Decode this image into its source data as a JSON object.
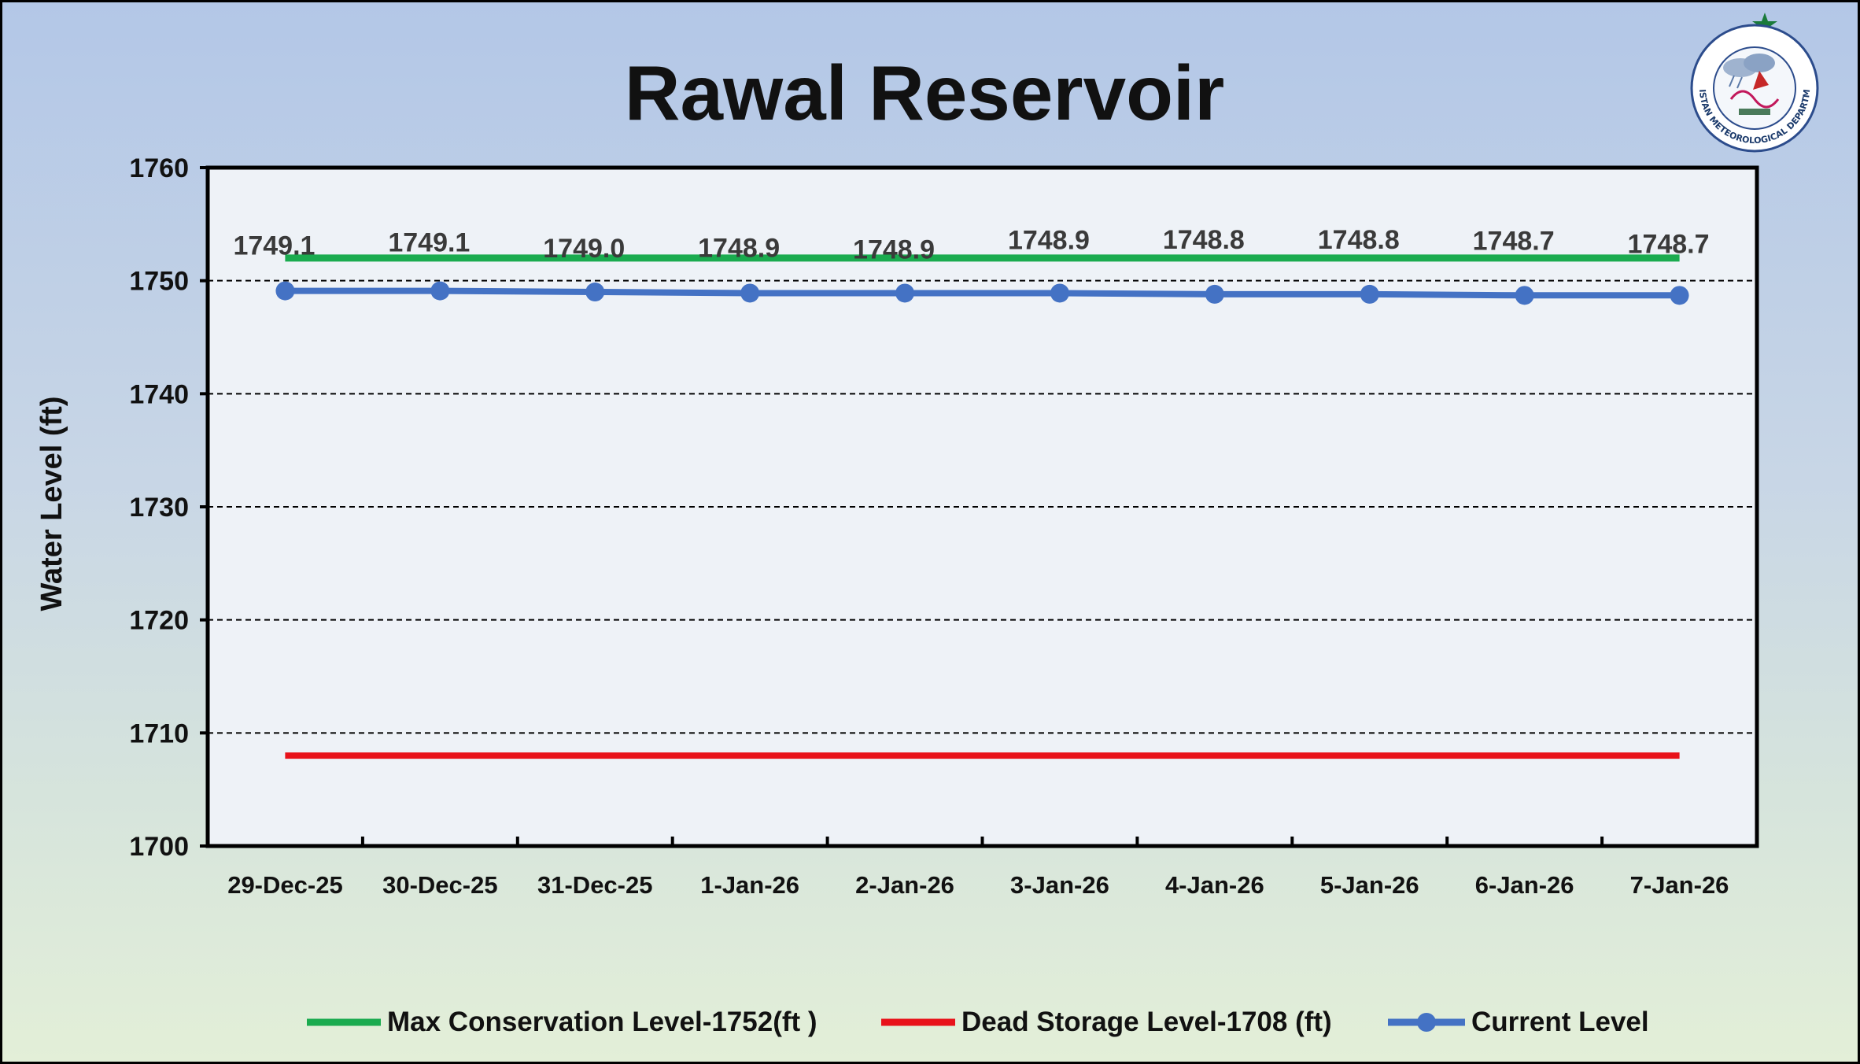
{
  "chart_data": {
    "type": "line",
    "title": "Rawal Reservoir",
    "xlabel": "",
    "ylabel": "Water Level (ft)",
    "ylim": [
      1700,
      1760
    ],
    "yticks": [
      "1760",
      "1750",
      "1740",
      "1730",
      "1720",
      "1710",
      "1700"
    ],
    "categories": [
      "29-Dec-25",
      "30-Dec-25",
      "31-Dec-25",
      "1-Jan-26",
      "2-Jan-26",
      "3-Jan-26",
      "4-Jan-26",
      "5-Jan-26",
      "6-Jan-26",
      "7-Jan-26"
    ],
    "grid": "horizontal dashed",
    "legend_position": "bottom",
    "series": [
      {
        "name": "Max Conservation Level-1752(ft )",
        "color": "#1aab4f",
        "values": [
          1752,
          1752,
          1752,
          1752,
          1752,
          1752,
          1752,
          1752,
          1752,
          1752
        ]
      },
      {
        "name": "Dead Storage Level-1708 (ft)",
        "color": "#e8121a",
        "values": [
          1708,
          1708,
          1708,
          1708,
          1708,
          1708,
          1708,
          1708,
          1708,
          1708
        ]
      },
      {
        "name": "Current Level",
        "color": "#4472c4",
        "values": [
          1749.1,
          1749.1,
          1749.0,
          1748.9,
          1748.9,
          1748.9,
          1748.8,
          1748.8,
          1748.7,
          1748.7
        ],
        "data_labels": [
          "1749.1",
          "1749.1",
          "1749.0",
          "1748.9",
          "1748.9",
          "1748.9",
          "1748.8",
          "1748.8",
          "1748.7",
          "1748.7"
        ]
      }
    ]
  },
  "logo": {
    "name": "pakistan-meteorological-department-logo",
    "text": "PAKISTAN METEOROLOGICAL DEPARTMENT"
  }
}
